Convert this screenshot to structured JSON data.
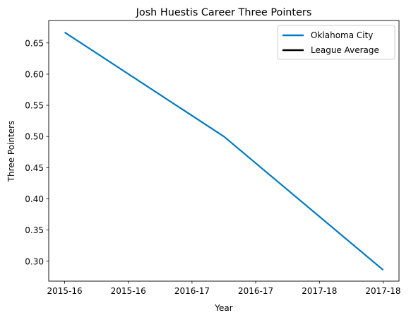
{
  "chart_data": {
    "type": "line",
    "title": "Josh Huestis Career Three Pointers",
    "xlabel": "Year",
    "ylabel": "Three Pointers",
    "x_tick_labels": [
      "2015-16",
      "2015-16",
      "2016-17",
      "2016-17",
      "2017-18",
      "2017-18"
    ],
    "x_range": [
      -0.1,
      2.1
    ],
    "ylim": [
      0.268,
      0.686
    ],
    "y_ticks": [
      0.3,
      0.35,
      0.4,
      0.45,
      0.5,
      0.55,
      0.6,
      0.65
    ],
    "y_tick_labels": [
      "0.30",
      "0.35",
      "0.40",
      "0.45",
      "0.50",
      "0.55",
      "0.60",
      "0.65"
    ],
    "grid": false,
    "legend_position": "top-right",
    "series": [
      {
        "name": "Oklahoma City",
        "color": "#007AC1",
        "x": [
          "2015-16",
          "2016-17",
          "2017-18"
        ],
        "values": [
          0.667,
          0.5,
          0.286
        ]
      },
      {
        "name": "League Average",
        "color": "#000000",
        "x": [],
        "values": []
      }
    ]
  }
}
